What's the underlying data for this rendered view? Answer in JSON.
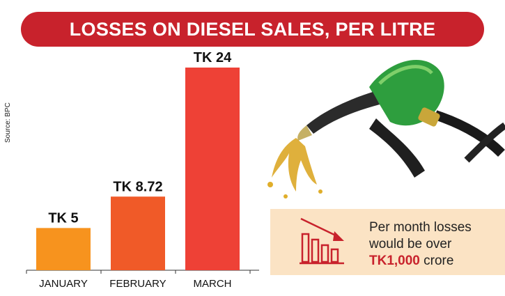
{
  "title": "LOSSES ON DIESEL SALES, PER LITRE",
  "source": "Source: BPC",
  "info": {
    "line1": "Per month losses",
    "line2": "would be over",
    "amount": "TK1,000",
    "unit": "crore"
  },
  "icons": {
    "trend": "declining-bar-chart-icon",
    "nozzle": "fuel-nozzle-icon"
  },
  "colors": {
    "banner": "#c8222c",
    "january": "#f7931e",
    "february": "#f05a28",
    "march": "#ee4136",
    "info_bg": "#fbe3c4"
  },
  "chart_data": {
    "type": "bar",
    "categories": [
      "JANUARY",
      "FEBRUARY",
      "MARCH"
    ],
    "values": [
      5,
      8.72,
      24
    ],
    "data_labels": [
      "TK 5",
      "TK 8.72",
      "TK 24"
    ],
    "bar_colors": [
      "#f7931e",
      "#f05a28",
      "#ee4136"
    ],
    "title": "LOSSES ON DIESEL SALES, PER LITRE",
    "xlabel": "",
    "ylabel": "",
    "ylim": [
      0,
      24
    ],
    "grid": false,
    "legend": "none"
  }
}
